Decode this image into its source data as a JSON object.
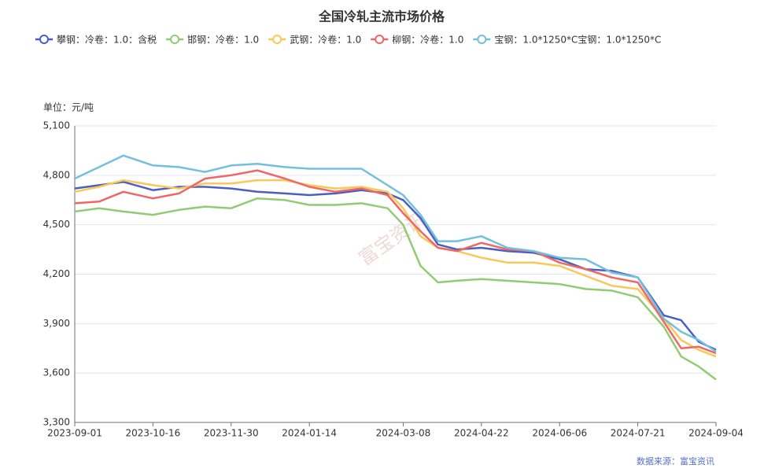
{
  "chart_data": {
    "type": "line",
    "title": "全国冷轧主流市场价格",
    "y_label": "单位：元/吨",
    "source": "数据来源：富宝资讯",
    "watermark": "富宝资讯",
    "x": [
      "2023-09-01",
      "2023-09-15",
      "2023-09-29",
      "2023-10-16",
      "2023-10-31",
      "2023-11-15",
      "2023-11-30",
      "2023-12-15",
      "2023-12-31",
      "2024-01-14",
      "2024-01-29",
      "2024-02-13",
      "2024-02-28",
      "2024-03-08",
      "2024-03-18",
      "2024-03-28",
      "2024-04-08",
      "2024-04-22",
      "2024-05-07",
      "2024-05-22",
      "2024-06-06",
      "2024-06-21",
      "2024-07-06",
      "2024-07-21",
      "2024-08-05",
      "2024-08-15",
      "2024-08-25",
      "2024-09-04"
    ],
    "xticks": [
      "2023-09-01",
      "2023-10-16",
      "2023-11-30",
      "2024-01-14",
      "2024-03-08",
      "2024-04-22",
      "2024-06-06",
      "2024-07-21",
      "2024-09-04"
    ],
    "ylim": [
      3300,
      5100
    ],
    "yticks": [
      {
        "value": 3300,
        "label": "3,300"
      },
      {
        "value": 3600,
        "label": "3,600"
      },
      {
        "value": 3900,
        "label": "3,900"
      },
      {
        "value": 4200,
        "label": "4,200"
      },
      {
        "value": 4500,
        "label": "4,500"
      },
      {
        "value": 4800,
        "label": "4,800"
      },
      {
        "value": 5100,
        "label": "5,100"
      }
    ],
    "grid": true,
    "series": [
      {
        "name": "攀钢：冷卷：1.0：含税",
        "color": "#4a5fc1",
        "values": [
          4720,
          4740,
          4760,
          4710,
          4730,
          4730,
          4720,
          4700,
          4690,
          4680,
          4690,
          4710,
          4690,
          4650,
          4540,
          4380,
          4350,
          4360,
          4340,
          4330,
          4290,
          4230,
          4220,
          4180,
          3950,
          3920,
          3790,
          3740
        ]
      },
      {
        "name": "邯钢：冷卷：1.0",
        "color": "#91cc75",
        "values": [
          4580,
          4600,
          4580,
          4560,
          4590,
          4610,
          4600,
          4660,
          4650,
          4620,
          4620,
          4630,
          4600,
          4500,
          4250,
          4150,
          4160,
          4170,
          4160,
          4150,
          4140,
          4110,
          4100,
          4060,
          3880,
          3700,
          3640,
          3560
        ]
      },
      {
        "name": "武钢：冷卷：1.0",
        "color": "#fac858",
        "values": [
          4700,
          4730,
          4770,
          4740,
          4720,
          4750,
          4750,
          4770,
          4770,
          4740,
          4720,
          4730,
          4700,
          4600,
          4430,
          4360,
          4340,
          4300,
          4270,
          4270,
          4250,
          4190,
          4130,
          4110,
          3930,
          3800,
          3740,
          3700
        ]
      },
      {
        "name": "柳钢：冷卷：1.0",
        "color": "#ee6666",
        "values": [
          4630,
          4640,
          4700,
          4660,
          4690,
          4780,
          4800,
          4830,
          4780,
          4730,
          4700,
          4720,
          4680,
          4570,
          4460,
          4360,
          4340,
          4390,
          4350,
          4340,
          4270,
          4230,
          4180,
          4150,
          3910,
          3750,
          3760,
          3720
        ]
      },
      {
        "name": "宝钢：1.0*1250*C宝钢：1.0*1250*C",
        "color": "#73c0de",
        "values": [
          4780,
          4850,
          4920,
          4860,
          4850,
          4820,
          4860,
          4870,
          4850,
          4840,
          4840,
          4840,
          4740,
          4680,
          4560,
          4400,
          4400,
          4430,
          4360,
          4340,
          4300,
          4290,
          4210,
          4180,
          3930,
          3850,
          3800,
          3730
        ]
      }
    ]
  }
}
